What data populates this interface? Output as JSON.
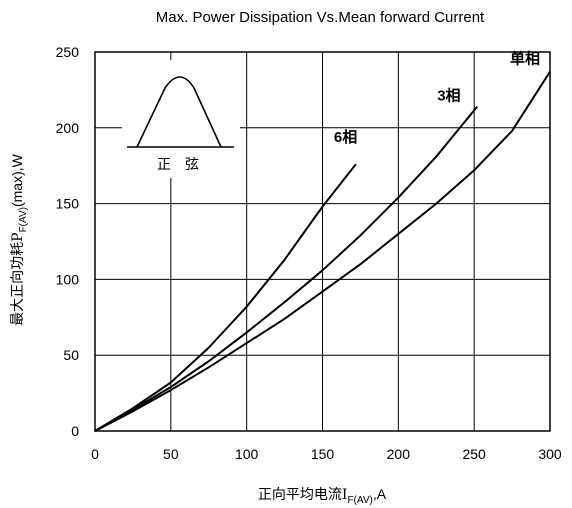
{
  "chart_data": {
    "type": "line",
    "title": "Max. Power Dissipation Vs.Mean forward Current",
    "xlabel": {
      "main": "正向平均电流I",
      "sub": "F(AV)",
      "unit": ",A"
    },
    "ylabel": {
      "main": "最大正向功耗P",
      "sub": "F(AV)",
      "unit": "(max),W"
    },
    "xlim": [
      0,
      300
    ],
    "ylim": [
      0,
      250
    ],
    "xticks": [
      "0",
      "50",
      "100",
      "150",
      "200",
      "250",
      "300"
    ],
    "yticks": [
      "0",
      "50",
      "100",
      "150",
      "200",
      "250"
    ],
    "grid": true,
    "inset_label": "正　弦",
    "series": [
      {
        "name": "6相",
        "x": [
          0,
          25,
          50,
          75,
          100,
          125,
          150,
          172
        ],
        "y": [
          0,
          15,
          32,
          55,
          82,
          113,
          148,
          176
        ]
      },
      {
        "name": "3相",
        "x": [
          0,
          25,
          50,
          75,
          100,
          125,
          150,
          175,
          200,
          225,
          252
        ],
        "y": [
          0,
          14,
          29,
          46,
          65,
          85,
          106,
          129,
          154,
          181,
          214
        ]
      },
      {
        "name": "单相",
        "x": [
          0,
          25,
          50,
          75,
          100,
          125,
          150,
          175,
          200,
          225,
          250,
          275,
          300
        ],
        "y": [
          0,
          13,
          27,
          42,
          58,
          74,
          92,
          110,
          130,
          150,
          172,
          198,
          237
        ]
      }
    ]
  }
}
